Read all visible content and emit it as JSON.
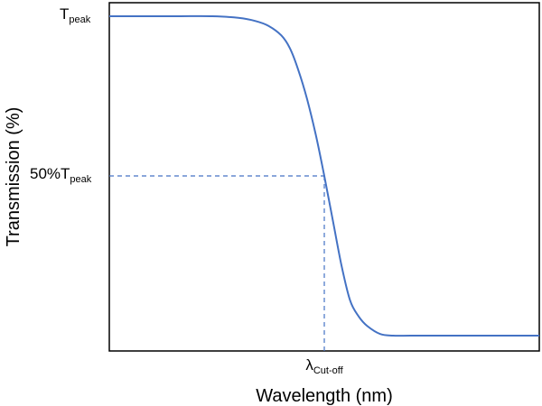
{
  "chart_data": {
    "type": "line",
    "title": "",
    "xlabel": "Wavelength (nm)",
    "ylabel": "Transmission (%)",
    "grid": false,
    "legend": "none",
    "colors": {
      "curve": "#4472c4",
      "guide": "#4472c4",
      "axes": "#000000"
    },
    "y_ticks": [
      {
        "value": 1.0,
        "main": "T",
        "sub": "peak"
      },
      {
        "value": 0.5,
        "main": "50%T",
        "sub": "peak"
      }
    ],
    "x_ticks": [
      {
        "value": 0.5,
        "main": "λ",
        "sub": "Cut-off"
      }
    ],
    "xlim": [
      0,
      1
    ],
    "ylim": [
      -0.05,
      1.04
    ],
    "series": [
      {
        "x": [
          0.0,
          0.08,
          0.16,
          0.24,
          0.3,
          0.34,
          0.37,
          0.4,
          0.42,
          0.44,
          0.46,
          0.48,
          0.5,
          0.52,
          0.54,
          0.56,
          0.58,
          0.6,
          0.63,
          0.66,
          0.7,
          0.76,
          0.85,
          0.93,
          1.0
        ],
        "y": [
          1.0,
          1.0,
          1.0,
          1.0,
          0.995,
          0.985,
          0.97,
          0.94,
          0.9,
          0.83,
          0.74,
          0.63,
          0.5,
          0.36,
          0.22,
          0.11,
          0.06,
          0.03,
          0.005,
          0.0,
          0.0,
          0.0,
          0.0,
          0.0,
          0.0
        ]
      }
    ],
    "guides": [
      {
        "kind": "horizontal",
        "y": 0.5,
        "x_from": 0,
        "x_to": 0.5
      },
      {
        "kind": "vertical",
        "x": 0.5,
        "y_from": 0.5,
        "y_to": -0.05
      }
    ]
  }
}
